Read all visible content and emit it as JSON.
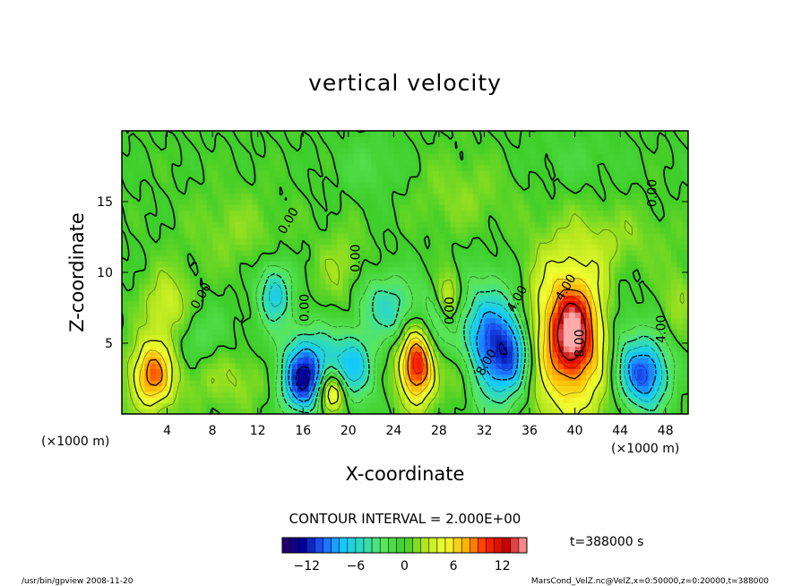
{
  "chart_data": {
    "type": "heatmap",
    "title": "vertical velocity",
    "xlabel": "X-coordinate",
    "ylabel": "Z-coordinate",
    "x_unit": "(×1000 m)",
    "x_unit_bottom": "(×1000 m)",
    "xlim": [
      0,
      50
    ],
    "ylim": [
      0,
      20
    ],
    "x_ticks": [
      4,
      8,
      12,
      16,
      20,
      24,
      28,
      32,
      36,
      40,
      44,
      48
    ],
    "y_ticks": [
      5,
      10,
      15
    ],
    "contour_interval_text": "CONTOUR INTERVAL = 2.000E+00",
    "contour_labels": [
      {
        "text": "0.00",
        "x": 7.3,
        "y": 8.2,
        "rot": -60
      },
      {
        "text": "0.00",
        "x": 15.0,
        "y": 13.5,
        "rot": -60
      },
      {
        "text": "0.00",
        "x": 16.5,
        "y": 7.5,
        "rot": -90
      },
      {
        "text": "0.00",
        "x": 21.0,
        "y": 11.0,
        "rot": -90
      },
      {
        "text": "0.00",
        "x": 29.3,
        "y": 7.3,
        "rot": -90
      },
      {
        "text": "8.00",
        "x": 32.5,
        "y": 3.5,
        "rot": -60
      },
      {
        "text": "4.00",
        "x": 35.2,
        "y": 8.0,
        "rot": -60
      },
      {
        "text": "4.00",
        "x": 39.5,
        "y": 8.8,
        "rot": -60
      },
      {
        "text": "8.00",
        "x": 40.8,
        "y": 5.0,
        "rot": -90
      },
      {
        "text": "0.00",
        "x": 47.2,
        "y": 15.6,
        "rot": -90
      },
      {
        "text": "4.00",
        "x": 48.0,
        "y": 6.0,
        "rot": -90
      }
    ],
    "features": [
      {
        "x": 2.7,
        "y": 2.8,
        "sx": 1.3,
        "sy": 1.7,
        "amp": 9
      },
      {
        "x": 4.0,
        "y": 7.5,
        "sx": 1.4,
        "sy": 1.8,
        "amp": 4
      },
      {
        "x": 6.5,
        "y": 5.5,
        "sx": 2.0,
        "sy": 1.5,
        "amp": -2
      },
      {
        "x": 9.5,
        "y": 2.5,
        "sx": 3.0,
        "sy": 1.5,
        "amp": 2
      },
      {
        "x": 13.5,
        "y": 8.5,
        "sx": 1.0,
        "sy": 1.5,
        "amp": -7
      },
      {
        "x": 16.0,
        "y": 2.2,
        "sx": 1.3,
        "sy": 1.5,
        "amp": -12
      },
      {
        "x": 17.5,
        "y": 4.5,
        "sx": 2.5,
        "sy": 1.5,
        "amp": -5
      },
      {
        "x": 18.5,
        "y": 1.5,
        "sx": 0.8,
        "sy": 1.0,
        "amp": 9
      },
      {
        "x": 20.5,
        "y": 3.0,
        "sx": 1.2,
        "sy": 1.6,
        "amp": -6
      },
      {
        "x": 19.5,
        "y": 9.0,
        "sx": 1.5,
        "sy": 2.5,
        "amp": 3
      },
      {
        "x": 22.5,
        "y": 8.0,
        "sx": 2.5,
        "sy": 1.5,
        "amp": -4
      },
      {
        "x": 24.5,
        "y": 6.5,
        "sx": 1.5,
        "sy": 1.5,
        "amp": -3
      },
      {
        "x": 26.2,
        "y": 3.8,
        "sx": 1.2,
        "sy": 2.0,
        "amp": 13
      },
      {
        "x": 27.5,
        "y": 5.5,
        "sx": 1.0,
        "sy": 2.0,
        "amp": -5
      },
      {
        "x": 28.8,
        "y": 8.2,
        "sx": 0.8,
        "sy": 1.3,
        "amp": 5
      },
      {
        "x": 30.0,
        "y": 3.0,
        "sx": 1.0,
        "sy": 1.5,
        "amp": 4
      },
      {
        "x": 32.5,
        "y": 5.0,
        "sx": 2.0,
        "sy": 2.8,
        "amp": -10
      },
      {
        "x": 34.5,
        "y": 4.0,
        "sx": 1.2,
        "sy": 2.0,
        "amp": -6
      },
      {
        "x": 39.5,
        "y": 5.5,
        "sx": 2.6,
        "sy": 4.0,
        "amp": 10
      },
      {
        "x": 39.8,
        "y": 5.8,
        "sx": 0.9,
        "sy": 1.5,
        "amp": 8
      },
      {
        "x": 44.0,
        "y": 6.0,
        "sx": 1.0,
        "sy": 2.5,
        "amp": -3
      },
      {
        "x": 45.5,
        "y": 2.8,
        "sx": 1.3,
        "sy": 1.7,
        "amp": -8
      },
      {
        "x": 47.0,
        "y": 3.0,
        "sx": 1.2,
        "sy": 2.0,
        "amp": -5
      },
      {
        "x": 49.0,
        "y": 8.0,
        "sx": 1.0,
        "sy": 2.0,
        "amp": 2
      },
      {
        "x": 10.0,
        "y": 13.0,
        "sx": 3.0,
        "sy": 2.0,
        "amp": 1.5
      },
      {
        "x": 22.0,
        "y": 17.5,
        "sx": 2.0,
        "sy": 1.5,
        "amp": -1.5
      },
      {
        "x": 30.0,
        "y": 15.5,
        "sx": 3.0,
        "sy": 2.0,
        "amp": 1.5
      },
      {
        "x": 44.0,
        "y": 12.5,
        "sx": 3.0,
        "sy": 1.5,
        "amp": 1.5
      },
      {
        "x": 40.0,
        "y": 18.0,
        "sx": 3.0,
        "sy": 1.5,
        "amp": -1
      }
    ],
    "colorbar": {
      "min": -15,
      "max": 15,
      "ticks": [
        -12,
        -6,
        0,
        6,
        12
      ],
      "stops": [
        "#2b0066",
        "#00009a",
        "#1e5fff",
        "#14c8ff",
        "#32dcb4",
        "#5ae65a",
        "#3ccd28",
        "#b4e61e",
        "#f0ff32",
        "#ffb400",
        "#ff2800",
        "#c80000",
        "#ffaaaa"
      ]
    },
    "time_text": "t=388000 s"
  },
  "footer": {
    "left_text": "/usr/bin/gpview  2008-11-20",
    "right_text": "MarsCond_VelZ.nc@VelZ,x=0:50000,z=0:20000,t=388000"
  }
}
